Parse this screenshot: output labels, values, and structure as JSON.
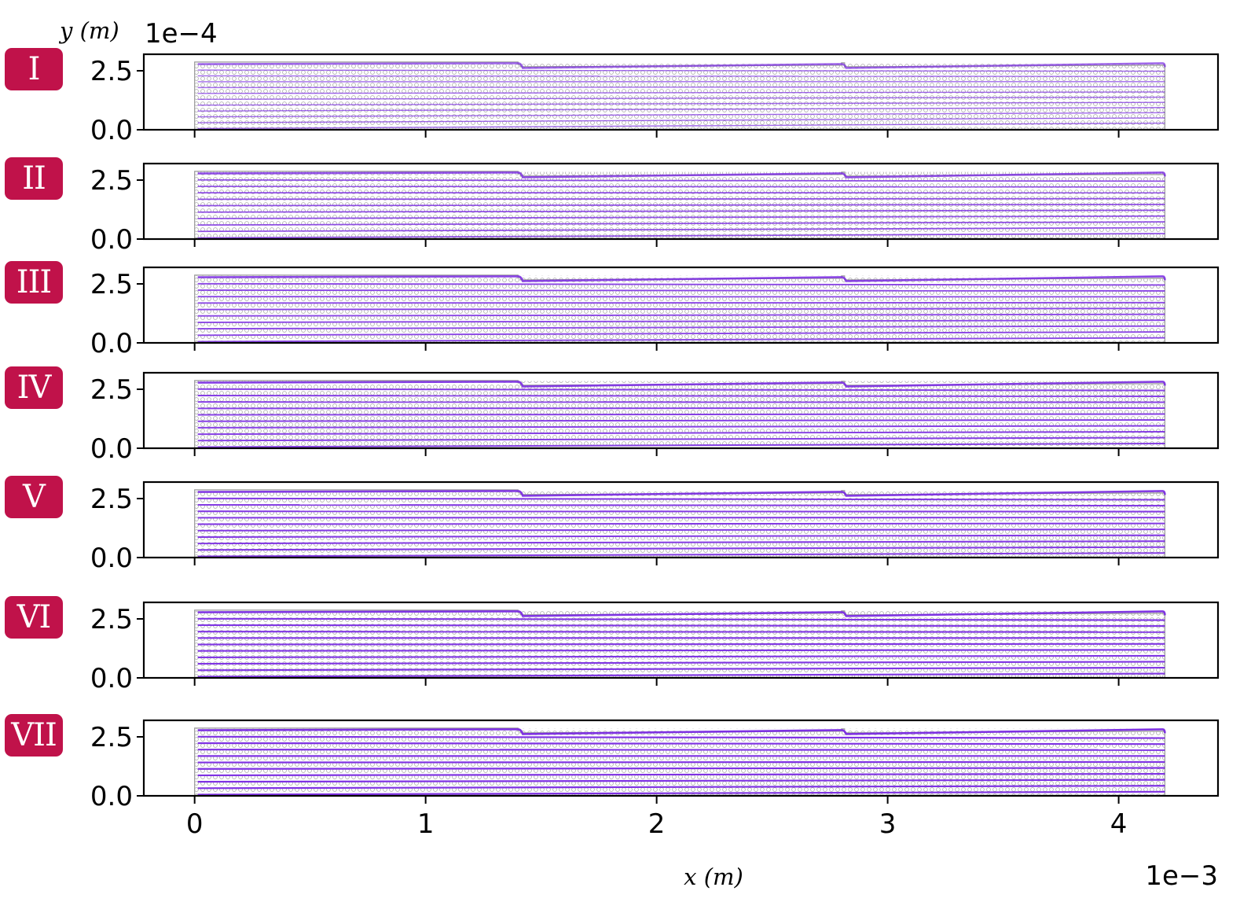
{
  "chart_data": {
    "type": "line",
    "description_of_marks": "Seven stacked panels, each showing purple streamlines through a channel of small grey circular obstacles with two step contractions.",
    "y_axis": {
      "label": "y (m)",
      "scale_factor": "1e−4",
      "ticks": [
        0.0,
        2.5
      ],
      "tick_labels": [
        "0.0",
        "2.5"
      ],
      "ylim": [
        0.0,
        3.2
      ]
    },
    "x_axis": {
      "label": "x (m)",
      "scale_factor": "1e−3",
      "ticks": [
        0,
        1,
        2,
        3,
        4
      ],
      "tick_labels": [
        "0",
        "1",
        "2",
        "3",
        "4"
      ],
      "xlim": [
        -0.22,
        4.43
      ]
    },
    "channel": {
      "x_start": 0.0,
      "x_end": 4.2,
      "step1_x": 1.4,
      "step2_x": 2.8,
      "top_start": 2.85,
      "top_end": 2.8
    },
    "colors": {
      "streamline": "#7a2be2",
      "obstacle": "#8a8a8a",
      "badge": "#c0124a",
      "axis": "#000000"
    },
    "grid": false,
    "panels": [
      {
        "label": "I",
        "streamline_count": 12,
        "density": 0.35
      },
      {
        "label": "II",
        "streamline_count": 11,
        "density": 0.6
      },
      {
        "label": "III",
        "streamline_count": 11,
        "density": 0.7
      },
      {
        "label": "IV",
        "streamline_count": 11,
        "density": 0.78
      },
      {
        "label": "V",
        "streamline_count": 11,
        "density": 0.82
      },
      {
        "label": "VI",
        "streamline_count": 11,
        "density": 0.88
      },
      {
        "label": "VII",
        "streamline_count": 11,
        "density": 0.92
      }
    ]
  }
}
